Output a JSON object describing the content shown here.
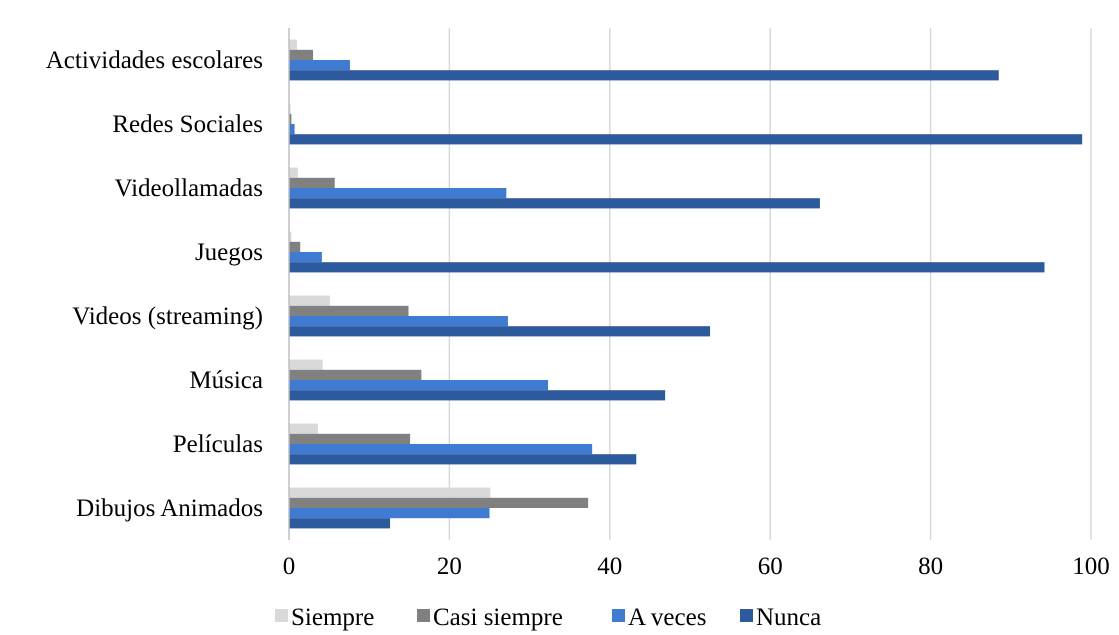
{
  "chart_data": {
    "type": "bar",
    "orientation": "horizontal",
    "categories": [
      "Actividades escolares",
      "Redes Sociales",
      "Videollamadas",
      "Juegos",
      "Videos (streaming)",
      "Música",
      "Películas",
      "Dibujos Animados"
    ],
    "series": [
      {
        "name": "Siempre",
        "color": "#d9d9d9",
        "values": [
          1.0,
          0.2,
          1.1,
          0.3,
          5.1,
          4.2,
          3.6,
          25.1
        ]
      },
      {
        "name": "Casi siempre",
        "color": "#808080",
        "values": [
          3.0,
          0.3,
          5.7,
          1.4,
          14.9,
          16.5,
          15.1,
          37.3
        ]
      },
      {
        "name": "A veces",
        "color": "#3e7bd1",
        "values": [
          7.6,
          0.7,
          27.1,
          4.1,
          27.3,
          32.3,
          37.8,
          25.0
        ]
      },
      {
        "name": "Nunca",
        "color": "#2d5a9c",
        "values": [
          88.5,
          98.9,
          66.2,
          94.2,
          52.5,
          46.9,
          43.3,
          12.6
        ]
      }
    ],
    "xlim": [
      0,
      100
    ],
    "xticks": [
      "0",
      "20",
      "40",
      "60",
      "80",
      "100"
    ],
    "grid": true,
    "legend_position": "bottom",
    "title": "",
    "xlabel": "",
    "ylabel": ""
  }
}
